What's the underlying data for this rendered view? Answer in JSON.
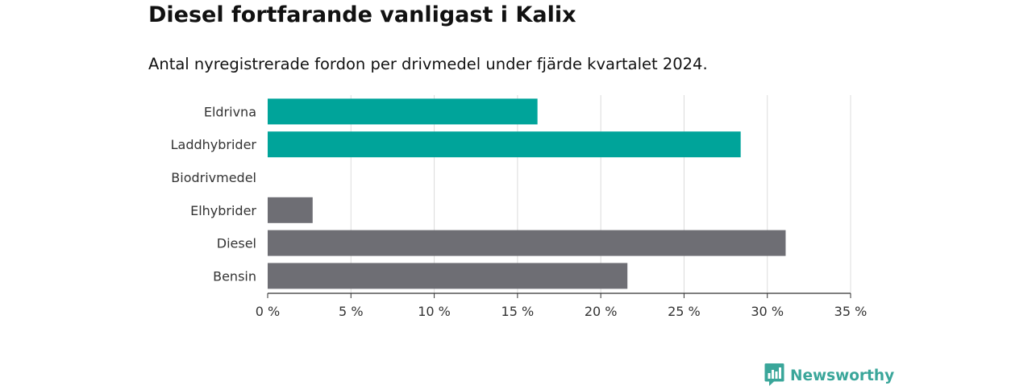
{
  "header": {
    "title": "Diesel fortfarande vanligast i Kalix",
    "subtitle": "Antal nyregistrerade fordon per drivmedel under fjärde kvartalet 2024."
  },
  "brand": {
    "name": "Newsworthy",
    "icon": "newsworthy-logo-icon",
    "color": "#3aa69a"
  },
  "chart_data": {
    "type": "bar",
    "orientation": "horizontal",
    "categories": [
      "Eldrivna",
      "Laddhybrider",
      "Biodrivmedel",
      "Elhybrider",
      "Diesel",
      "Bensin"
    ],
    "values": [
      16.2,
      28.4,
      0,
      2.7,
      31.1,
      21.6
    ],
    "colors": [
      "#00a49a",
      "#00a49a",
      "#6e6e74",
      "#6e6e74",
      "#6e6e74",
      "#6e6e74"
    ],
    "xlim": [
      0,
      35
    ],
    "xticks": [
      0,
      5,
      10,
      15,
      20,
      25,
      30,
      35
    ],
    "tick_labels": [
      "0 %",
      "5 %",
      "10 %",
      "15 %",
      "20 %",
      "25 %",
      "30 %",
      "35 %"
    ],
    "grid": true,
    "xlabel": "",
    "ylabel": ""
  }
}
